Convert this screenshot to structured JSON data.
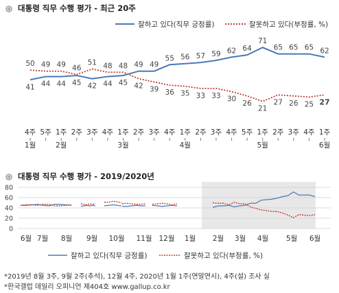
{
  "titles": {
    "mark": "◎",
    "main": "대통령 직무 수행 평가 - 최근 20주",
    "sub": "대통령 직무 수행 평가 - 2019/2020년"
  },
  "legend": {
    "approve": "잘하고 있다(직무 긍정률)",
    "disapprove": "잘못하고 있다(부정률, %)"
  },
  "colors": {
    "approve": "#4a78b8",
    "disapprove": "#c0392b",
    "shade": "#e8e8e8"
  },
  "footnotes": {
    "line1": "*2019년 8월 3주, 9월 2주(추석), 12월 4주, 2020년 1월 1주(연말연시), 4주(설) 조사 실",
    "line2": "*한국갤럽 데일리 오피니언 제404호 www.gallup.co.kr"
  },
  "chart_data": [
    {
      "type": "line",
      "title": "대통령 직무 수행 평가 - 최근 20주",
      "categories": [
        "4주",
        "5주",
        "1주",
        "2주",
        "3주",
        "4주",
        "1주",
        "2주",
        "3주",
        "4주",
        "1주",
        "2주",
        "3주",
        "4주",
        "5주",
        "1주",
        "2주",
        "3주",
        "4주",
        "1주"
      ],
      "month_labels": [
        "1월",
        "",
        "2월",
        "",
        "",
        "",
        "3월",
        "",
        "",
        "",
        "4월",
        "",
        "",
        "",
        "",
        "5월",
        "",
        "",
        "",
        "6월"
      ],
      "series": [
        {
          "name": "잘하고 있다(직무 긍정률)",
          "values": [
            41,
            44,
            44,
            45,
            42,
            44,
            45,
            49,
            49,
            55,
            56,
            57,
            59,
            62,
            64,
            71,
            65,
            65,
            65,
            62
          ]
        },
        {
          "name": "잘못하고 있다(부정률, %)",
          "values": [
            50,
            49,
            49,
            46,
            51,
            48,
            48,
            42,
            39,
            36,
            35,
            33,
            33,
            30,
            26,
            21,
            27,
            26,
            25,
            27
          ]
        }
      ],
      "ylim": [
        10,
        80
      ],
      "data_labels": true,
      "legend_position": "top-right"
    },
    {
      "type": "line",
      "title": "대통령 직무 수행 평가 - 2019/2020년",
      "x_ticks": [
        "6월",
        "7월",
        "8월",
        "9월",
        "10월",
        "11월",
        "12월",
        "1월",
        "2월",
        "3월",
        "4월",
        "5월",
        "6월"
      ],
      "y_ticks": [
        "0",
        "20",
        "40",
        "60",
        "80"
      ],
      "ylim": [
        0,
        80
      ],
      "grid": true,
      "highlight": "recent 20 weeks (shaded)",
      "series": [
        {
          "name": "잘하고 있다(직무 긍정률)",
          "segments": [
            [
              45,
              45,
              46,
              47,
              45,
              44,
              47,
              47,
              46,
              45
            ],
            [
              43,
              44,
              45,
              44,
              45,
              44
            ],
            [
              44,
              45,
              46,
              45,
              44
            ],
            [
              43,
              43,
              44,
              45,
              44,
              44
            ],
            [
              45,
              44,
              43,
              44,
              45,
              44
            ],
            [
              41,
              44,
              44,
              45,
              42,
              44,
              45,
              49,
              49,
              55,
              56,
              57,
              59,
              62,
              64,
              71,
              65,
              65,
              65,
              62
            ]
          ]
        },
        {
          "name": "잘못하고 있다(부정률, %)",
          "segments": [
            [
              45,
              46,
              46,
              45,
              47,
              47,
              44,
              44,
              45,
              46
            ],
            [
              48,
              47,
              46,
              48,
              47,
              48
            ],
            [
              51,
              51,
              53,
              52,
              50
            ],
            [
              48,
              49,
              48,
              47,
              47,
              48
            ],
            [
              47,
              48,
              49,
              48,
              46,
              48
            ],
            [
              50,
              49,
              49,
              46,
              51,
              48,
              48,
              42,
              39,
              36,
              35,
              33,
              33,
              30,
              26,
              21,
              27,
              26,
              25,
              27
            ]
          ]
        }
      ],
      "legend_position": "bottom"
    }
  ]
}
